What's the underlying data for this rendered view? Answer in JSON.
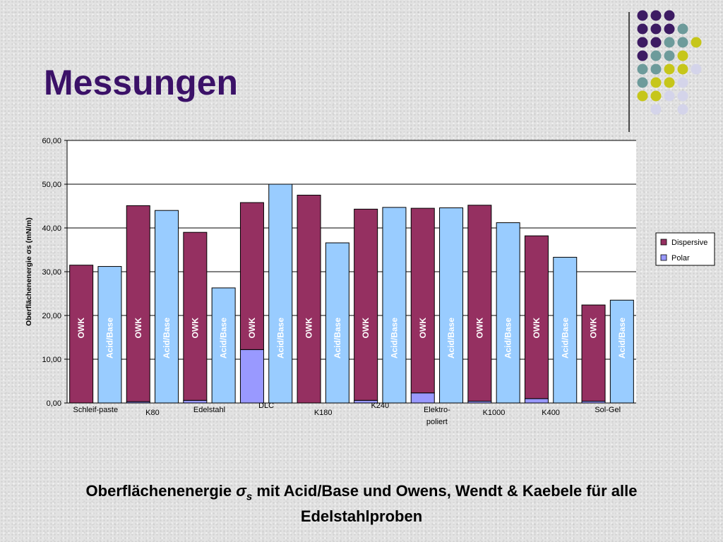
{
  "slide": {
    "title": "Messungen",
    "caption_parts": {
      "before": "Oberflächenenergie ",
      "sigma": "σ",
      "sub": "s",
      "after": " mit Acid/Base und Owens, Wendt & Kaebele für alle Edelstahlproben"
    }
  },
  "decoration": {
    "dot_rows": [
      [
        "purple",
        "purple",
        "purple",
        "none",
        "none"
      ],
      [
        "purple",
        "purple",
        "purple",
        "teal",
        "none"
      ],
      [
        "purple",
        "purple",
        "teal",
        "teal",
        "lime"
      ],
      [
        "purple",
        "teal",
        "teal",
        "lime",
        "none"
      ],
      [
        "teal",
        "teal",
        "lime",
        "lime",
        "lavender"
      ],
      [
        "teal",
        "lime",
        "lime",
        "lavender",
        "none"
      ],
      [
        "lime",
        "lime",
        "lavender",
        "lavender",
        "none"
      ],
      [
        "none",
        "lavender",
        "none",
        "lavender",
        "none"
      ]
    ],
    "colors": {
      "purple": "#3d1b63",
      "teal": "#6d9b9b",
      "lime": "#c6c61a",
      "lavender": "#d4d4ea"
    }
  },
  "chart_data": {
    "type": "bar",
    "stacked": true,
    "ylabel": "Oberflächenenergie σs (mN/m)",
    "ylim": [
      0,
      60
    ],
    "yticks": [
      "0,00",
      "10,00",
      "20,00",
      "30,00",
      "40,00",
      "50,00",
      "60,00"
    ],
    "grid": true,
    "legend": {
      "placement": "right",
      "entries": [
        "Dispersive",
        "Polar"
      ]
    },
    "groups": [
      "Schleif-paste",
      "K80",
      "Edelstahl",
      "DLC",
      "K180",
      "K240",
      "Elektro-poliert",
      "K1000",
      "K400",
      "Sol-Gel"
    ],
    "bars": [
      {
        "group": "Schleif-paste",
        "label": "OWK",
        "method": "owk",
        "dispersive": 31.5,
        "polar": 0.0
      },
      {
        "group": "Schleif-paste",
        "label": "Acid/Base",
        "method": "ab",
        "total": 31.2
      },
      {
        "group": "K80",
        "label": "OWK",
        "method": "owk",
        "dispersive": 44.8,
        "polar": 0.3
      },
      {
        "group": "K80",
        "label": "Acid/Base",
        "method": "ab",
        "total": 44.0
      },
      {
        "group": "Edelstahl",
        "label": "OWK",
        "method": "owk",
        "dispersive": 38.4,
        "polar": 0.6
      },
      {
        "group": "Edelstahl",
        "label": "Acid/Base",
        "method": "ab",
        "total": 26.3
      },
      {
        "group": "DLC",
        "label": "OWK",
        "method": "owk",
        "dispersive": 33.6,
        "polar": 12.2
      },
      {
        "group": "DLC",
        "label": "Acid/Base",
        "method": "ab",
        "total": 50.0
      },
      {
        "group": "K180",
        "label": "OWK",
        "method": "owk",
        "dispersive": 47.5,
        "polar": 0.0
      },
      {
        "group": "K180",
        "label": "Acid/Base",
        "method": "ab",
        "total": 36.6
      },
      {
        "group": "K240",
        "label": "OWK",
        "method": "owk",
        "dispersive": 43.7,
        "polar": 0.6
      },
      {
        "group": "K240",
        "label": "Acid/Base",
        "method": "ab",
        "total": 44.7
      },
      {
        "group": "Elektro-poliert",
        "label": "OWK",
        "method": "owk",
        "dispersive": 42.2,
        "polar": 2.3
      },
      {
        "group": "Elektro-poliert",
        "label": "Acid/Base",
        "method": "ab",
        "total": 44.6
      },
      {
        "group": "K1000",
        "label": "OWK",
        "method": "owk",
        "dispersive": 44.8,
        "polar": 0.4
      },
      {
        "group": "K1000",
        "label": "Acid/Base",
        "method": "ab",
        "total": 41.2
      },
      {
        "group": "K400",
        "label": "OWK",
        "method": "owk",
        "dispersive": 37.2,
        "polar": 1.0
      },
      {
        "group": "K400",
        "label": "Acid/Base",
        "method": "ab",
        "total": 33.3
      },
      {
        "group": "Sol-Gel",
        "label": "OWK",
        "method": "owk",
        "dispersive": 22.0,
        "polar": 0.4
      },
      {
        "group": "Sol-Gel",
        "label": "Acid/Base",
        "method": "ab",
        "total": 23.5
      }
    ],
    "colors": {
      "dispersive": "#953061",
      "polar": "#9999ff",
      "acid_base": "#99ccff"
    }
  }
}
